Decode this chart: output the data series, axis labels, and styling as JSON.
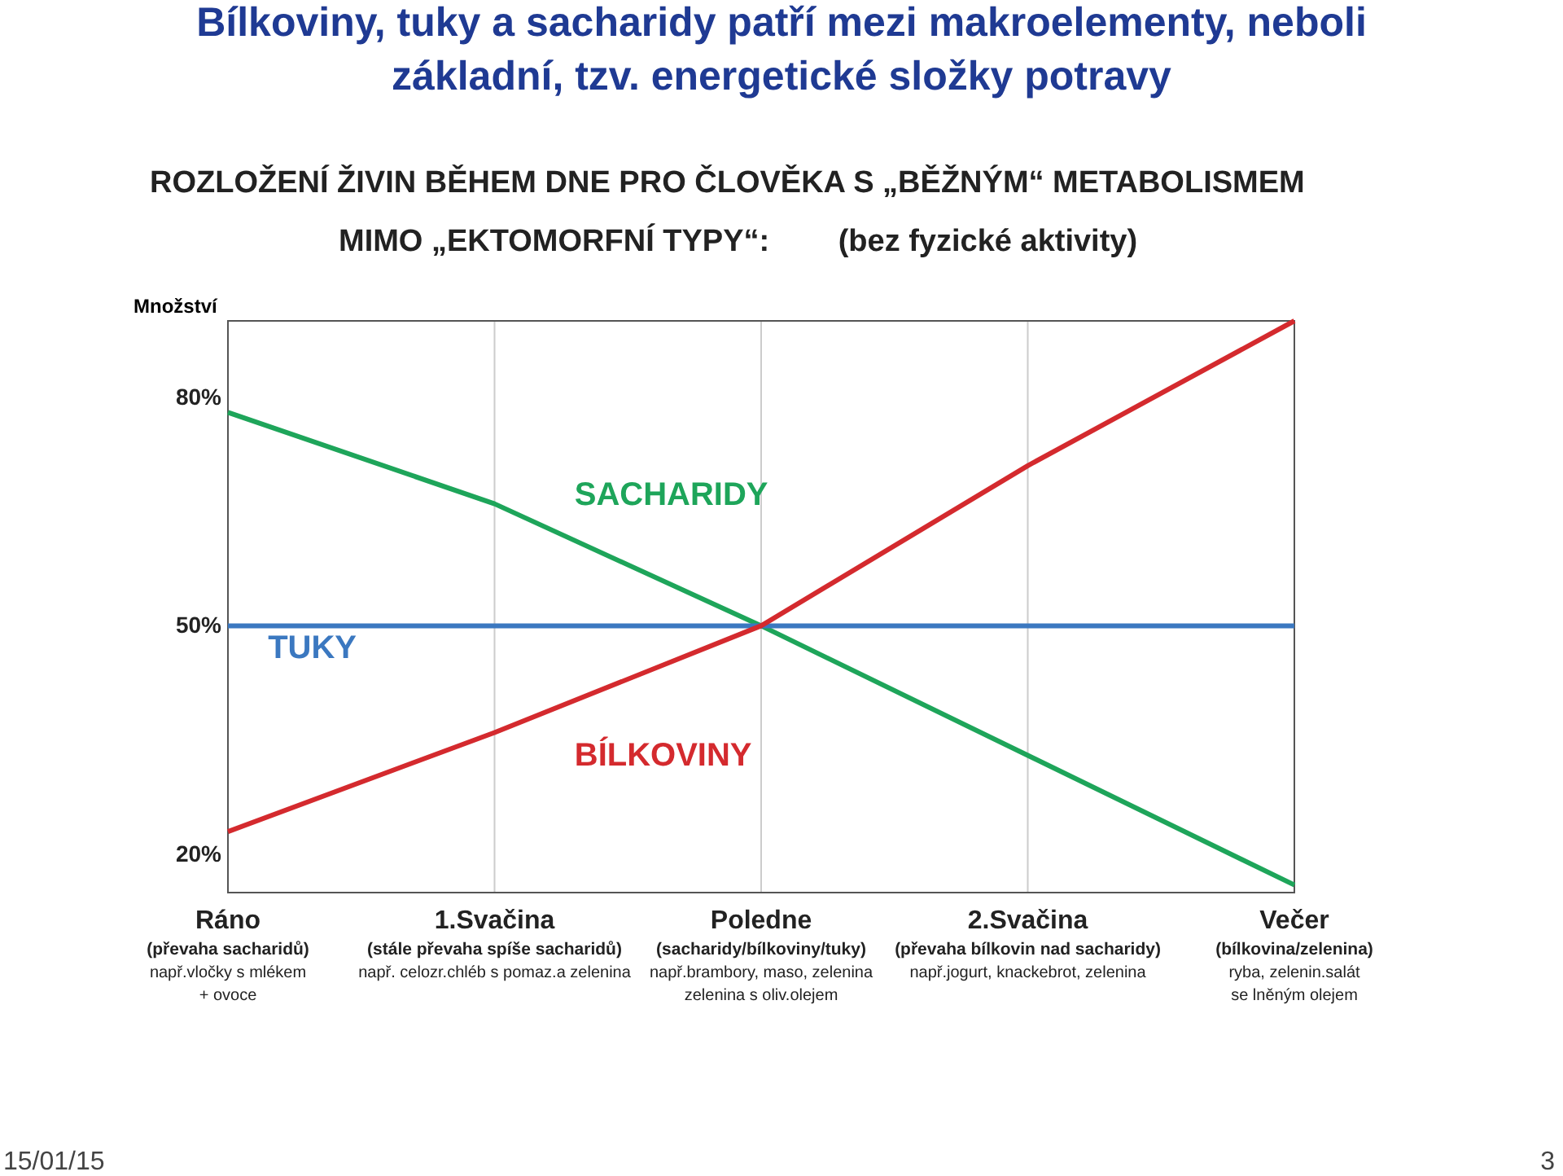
{
  "chart_data": {
    "type": "line",
    "title": "Bílkoviny, tuky a sacharidy patří mezi makroelementy, neboli\nzákladní, tzv. energetické složky potravy",
    "subtitle": "ROZLOŽENÍ ŽIVIN BĚHEM DNE PRO ČLOVĚKA S „BĚŽNÝM“ METABOLISMEM\nMIMO „EKTOMORFNÍ TYPY“:        (bez fyzické aktivity)",
    "ylabel": "Množství",
    "categories": [
      "Ráno\n(převaha sacharidů)\nnapř.vločky s mlékem\n+ ovoce",
      "1.Svačina\n(stále převaha spíše sacharidů)\nnapř. celozr.chléb s pomaz.a zelenina",
      "Poledne\n(sacharidy/bílkoviny/tuky)\nnapř.brambory, maso, zelenina\nzelenina s oliv.olejem",
      "2.Svačina\n(převaha bílkovin nad sacharidy)\nnapř.jogurt, knackebrot, zelenina",
      "Večer\n(bílkovina/zelenina)\nryba, zelenin.salát\nse lněným olejem"
    ],
    "series": [
      {
        "name": "SACHARIDY",
        "color": "#1ea55a",
        "values": [
          78,
          66,
          50,
          33,
          16
        ]
      },
      {
        "name": "TUKY",
        "color": "#3b78c0",
        "values": [
          50,
          50,
          50,
          50,
          50
        ]
      },
      {
        "name": "BÍLKOVINY",
        "color": "#d42a2e",
        "values": [
          23,
          36,
          50,
          71,
          90
        ]
      }
    ],
    "ylim": [
      15,
      90
    ],
    "yticks": [
      {
        "value": 20,
        "label": "20%"
      },
      {
        "value": 50,
        "label": "50%"
      },
      {
        "value": 80,
        "label": "80%"
      }
    ],
    "grid": "x",
    "legend": false,
    "marker": "none",
    "line_style": "solid",
    "annotations": [
      "15/01/15",
      "3"
    ]
  }
}
